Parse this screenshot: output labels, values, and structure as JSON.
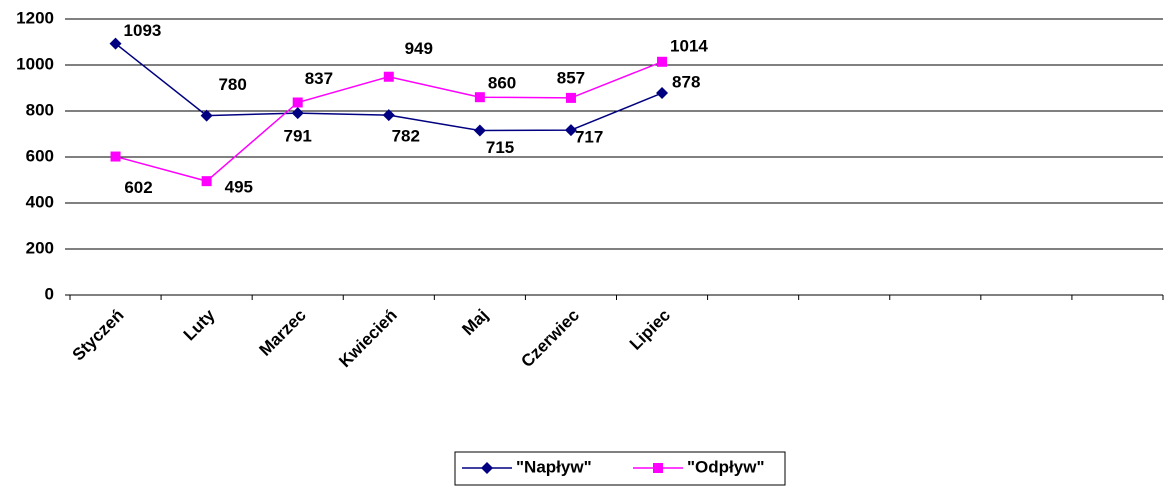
{
  "chart_data": {
    "type": "line",
    "categories": [
      "Styczeń",
      "Luty",
      "Marzec",
      "Kwiecień",
      "Maj",
      "Czerwiec",
      "Lipiec",
      null,
      null,
      null,
      null,
      null
    ],
    "series": [
      {
        "name": "\"Napływ\"",
        "color": "#000080",
        "marker": "diamond",
        "values": [
          1093,
          780,
          791,
          782,
          715,
          717,
          878,
          null,
          null,
          null,
          null,
          null
        ]
      },
      {
        "name": "\"Odpływ\"",
        "color": "#ff00ff",
        "marker": "square",
        "values": [
          602,
          495,
          837,
          949,
          860,
          857,
          1014,
          null,
          null,
          null,
          null,
          null
        ]
      }
    ],
    "ylim": [
      0,
      1200
    ],
    "yticks": [
      0,
      200,
      400,
      600,
      800,
      1000,
      1200
    ],
    "grid": true,
    "legend": "bottom"
  }
}
